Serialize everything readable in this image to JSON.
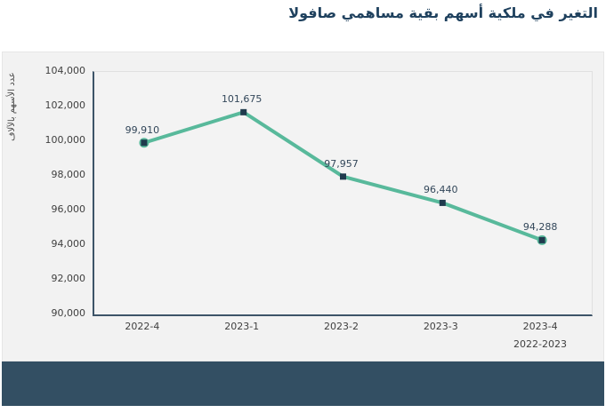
{
  "title": "التغير في ملكية أسهم بقية مساهمي صافولا",
  "chart_data": {
    "type": "line",
    "title": "التغير في ملكية أسهم بقية مساهمي صافولا",
    "categories": [
      "2022-4",
      "2023-1",
      "2023-2",
      "2023-3",
      "2023-4"
    ],
    "values": [
      99910,
      101675,
      97957,
      96440,
      94288
    ],
    "point_labels": [
      "99,910",
      "101,675",
      "97,957",
      "96,440",
      "94,288"
    ],
    "xlabel": "2022-2023",
    "ylabel": "عدد الأسهم بالآلاف",
    "ylim": [
      90000,
      104000
    ],
    "ytick_step": 2000,
    "yticks": [
      "90,000",
      "92,000",
      "94,000",
      "96,000",
      "98,000",
      "100,000",
      "102,000",
      "104,000"
    ],
    "grid": false,
    "legend": "none"
  },
  "colors": {
    "line": "#58b99b",
    "marker": "#1f3a4d",
    "axis": "#3d5468",
    "title_text": "#1f415e",
    "card_bg": "#f2f2f2",
    "footer_bg": "#334f63",
    "tick_text": "#3f3f3f"
  }
}
